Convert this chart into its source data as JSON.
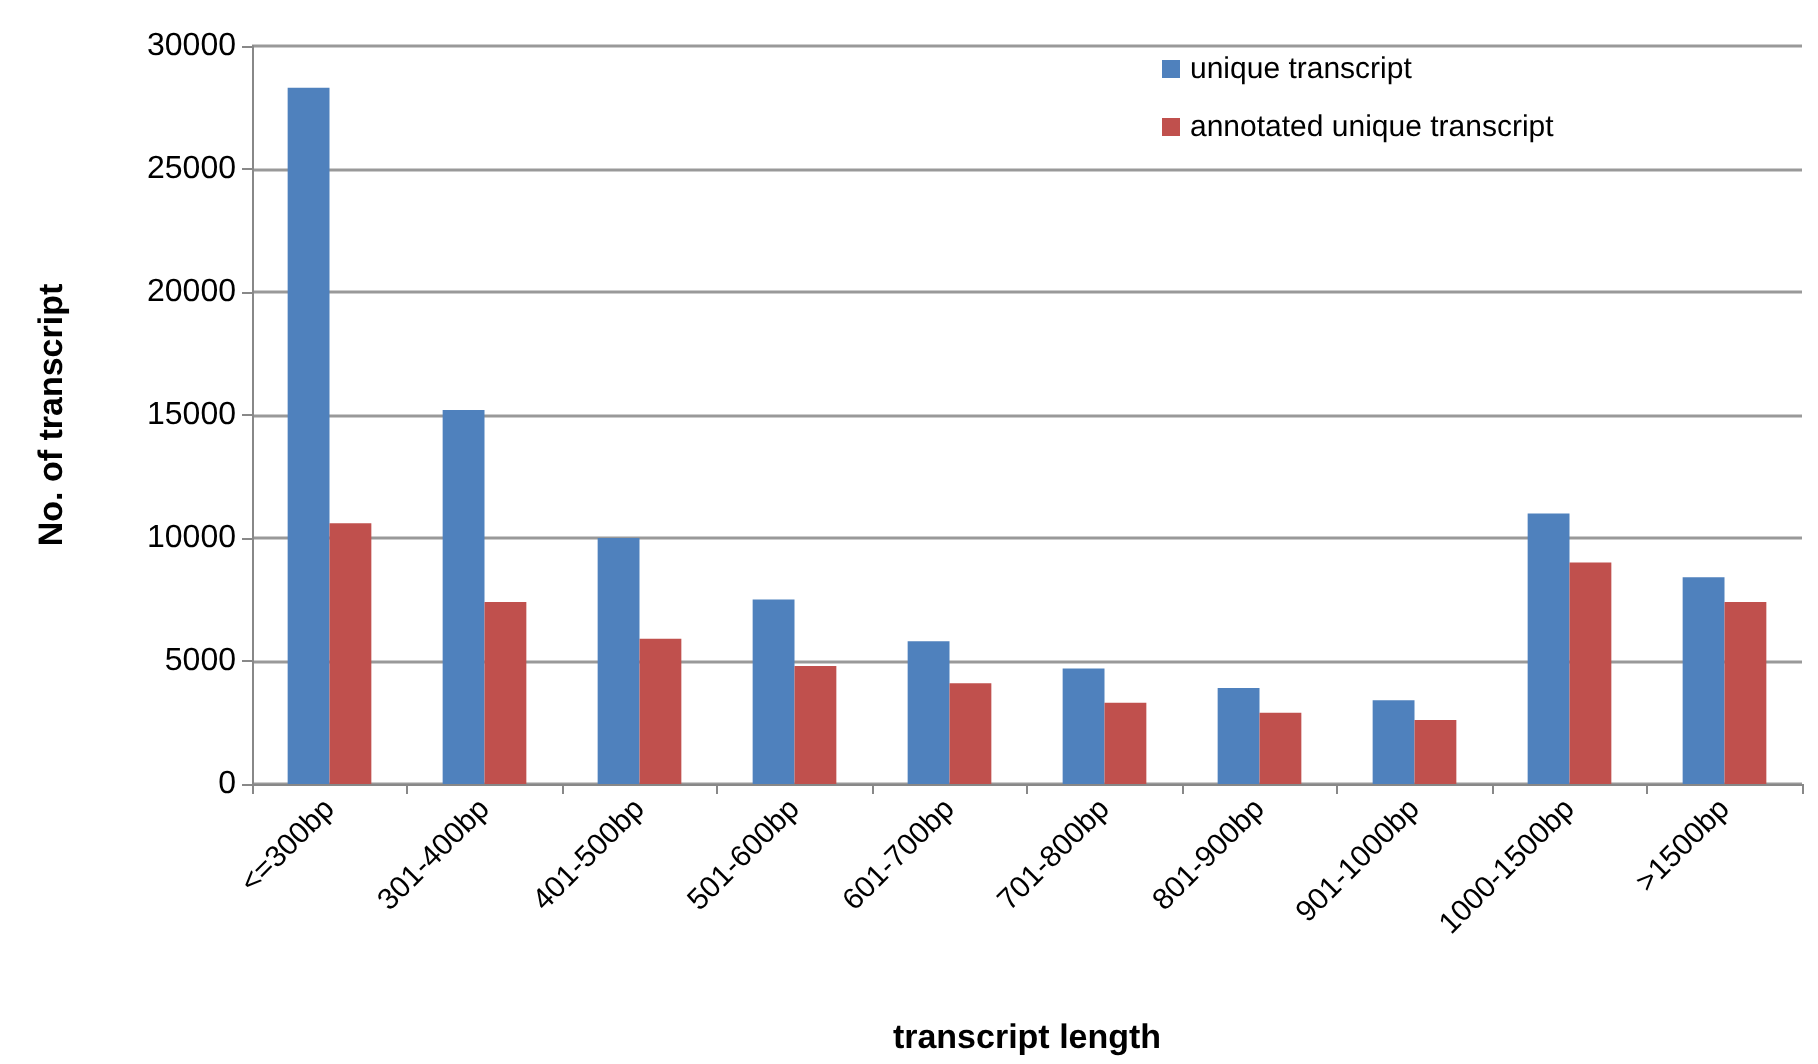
{
  "chart_data": {
    "type": "bar",
    "xlabel": "transcript length",
    "ylabel": "No. of transcript",
    "categories": [
      "<=300bp",
      "301-400bp",
      "401-500bp",
      "501-600bp",
      "601-700bp",
      "701-800bp",
      "801-900bp",
      "901-1000bp",
      "1000-1500bp",
      ">1500bp"
    ],
    "series": [
      {
        "name": "unique transcript",
        "color": "#4f81bd",
        "values": [
          28300,
          15200,
          10000,
          7500,
          5800,
          4700,
          3900,
          3400,
          11000,
          8400
        ]
      },
      {
        "name": "annotated unique transcript",
        "color": "#c0504d",
        "values": [
          10600,
          7400,
          5900,
          4800,
          4100,
          3300,
          2900,
          2600,
          9000,
          7400
        ]
      }
    ],
    "ylim": [
      0,
      30000
    ],
    "yticks": [
      0,
      5000,
      10000,
      15000,
      20000,
      25000,
      30000
    ],
    "grid": "y",
    "legend": "top right"
  }
}
